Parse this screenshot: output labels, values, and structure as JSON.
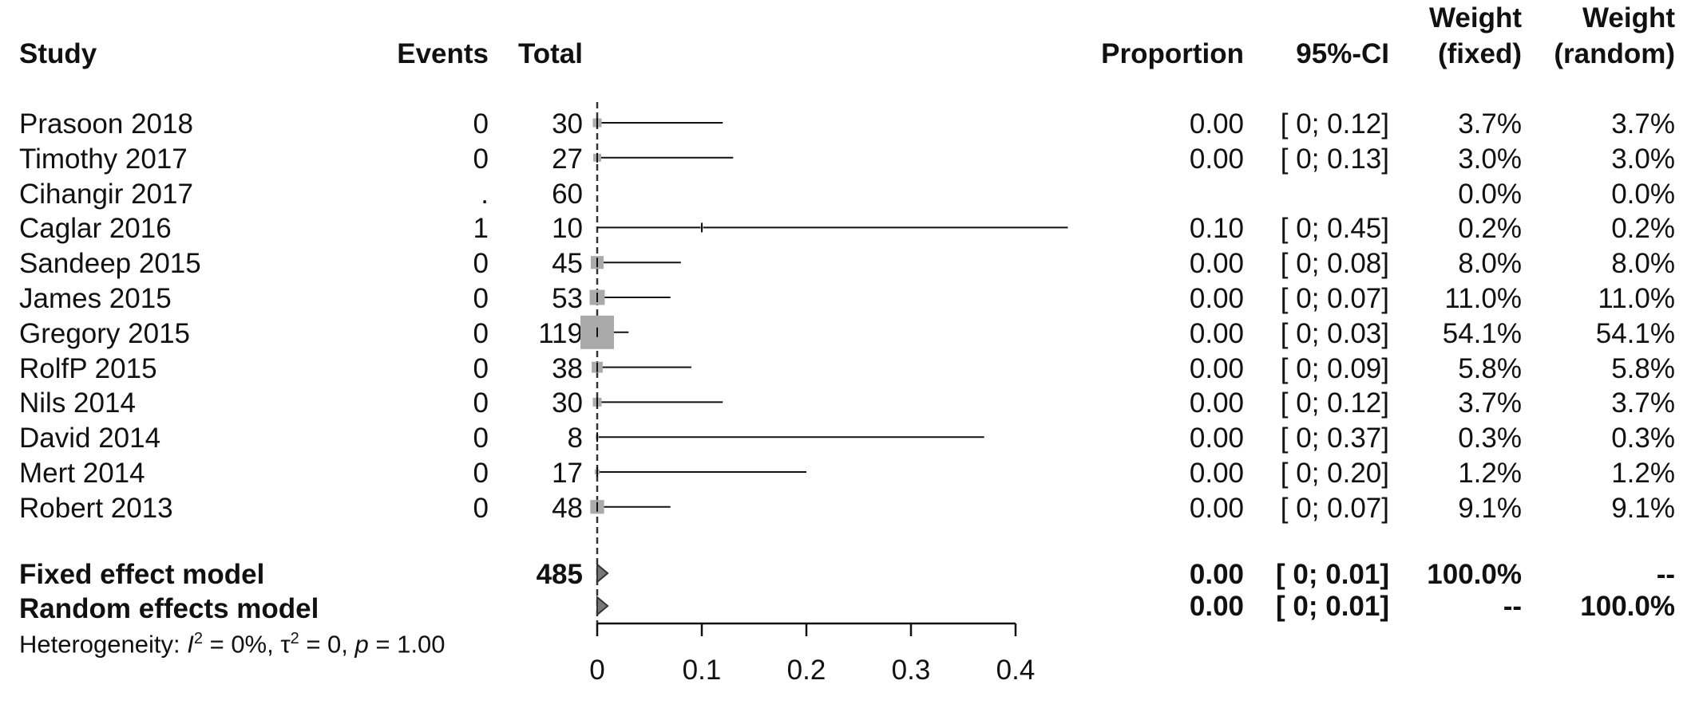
{
  "headers": {
    "study": "Study",
    "events": "Events",
    "total": "Total",
    "proportion": "Proportion",
    "ci": "95%-CI",
    "weight_fixed_1": "Weight",
    "weight_fixed_2": "(fixed)",
    "weight_random_1": "Weight",
    "weight_random_2": "(random)"
  },
  "rows": [
    {
      "study": "Prasoon 2018",
      "events": "0",
      "total": "30",
      "proportion": "0.00",
      "ci": "[ 0; 0.12]",
      "w_fixed": "3.7%",
      "w_random": "3.7%"
    },
    {
      "study": "Timothy 2017",
      "events": "0",
      "total": "27",
      "proportion": "0.00",
      "ci": "[ 0; 0.13]",
      "w_fixed": "3.0%",
      "w_random": "3.0%"
    },
    {
      "study": "Cihangir 2017",
      "events": ".",
      "total": "60",
      "proportion": "",
      "ci": "",
      "w_fixed": "0.0%",
      "w_random": "0.0%"
    },
    {
      "study": "Caglar 2016",
      "events": "1",
      "total": "10",
      "proportion": "0.10",
      "ci": "[ 0; 0.45]",
      "w_fixed": "0.2%",
      "w_random": "0.2%"
    },
    {
      "study": "Sandeep 2015",
      "events": "0",
      "total": "45",
      "proportion": "0.00",
      "ci": "[ 0; 0.08]",
      "w_fixed": "8.0%",
      "w_random": "8.0%"
    },
    {
      "study": "James 2015",
      "events": "0",
      "total": "53",
      "proportion": "0.00",
      "ci": "[ 0; 0.07]",
      "w_fixed": "11.0%",
      "w_random": "11.0%"
    },
    {
      "study": "Gregory 2015",
      "events": "0",
      "total": "119",
      "proportion": "0.00",
      "ci": "[ 0; 0.03]",
      "w_fixed": "54.1%",
      "w_random": "54.1%"
    },
    {
      "study": "RolfP 2015",
      "events": "0",
      "total": "38",
      "proportion": "0.00",
      "ci": "[ 0; 0.09]",
      "w_fixed": "5.8%",
      "w_random": "5.8%"
    },
    {
      "study": "Nils 2014",
      "events": "0",
      "total": "30",
      "proportion": "0.00",
      "ci": "[ 0; 0.12]",
      "w_fixed": "3.7%",
      "w_random": "3.7%"
    },
    {
      "study": "David 2014",
      "events": "0",
      "total": "8",
      "proportion": "0.00",
      "ci": "[ 0; 0.37]",
      "w_fixed": "0.3%",
      "w_random": "0.3%"
    },
    {
      "study": "Mert 2014",
      "events": "0",
      "total": "17",
      "proportion": "0.00",
      "ci": "[ 0; 0.20]",
      "w_fixed": "1.2%",
      "w_random": "1.2%"
    },
    {
      "study": "Robert 2013",
      "events": "0",
      "total": "48",
      "proportion": "0.00",
      "ci": "[ 0; 0.07]",
      "w_fixed": "9.1%",
      "w_random": "9.1%"
    }
  ],
  "models": {
    "fixed": {
      "label": "Fixed effect model",
      "total": "485",
      "proportion": "0.00",
      "ci": "[ 0; 0.01]",
      "w_fixed": "100.0%",
      "w_random": "--"
    },
    "random": {
      "label": "Random effects model",
      "total": "",
      "proportion": "0.00",
      "ci": "[ 0; 0.01]",
      "w_fixed": "--",
      "w_random": "100.0%"
    }
  },
  "heterogeneity": {
    "prefix": "Heterogeneity: ",
    "i_symbol": "I",
    "i_sup": "2",
    "i_value": " = 0%, ",
    "tau_symbol": "τ",
    "tau_sup": "2",
    "tau_value": " = 0, ",
    "p_symbol": "p",
    "p_value": " = 1.00"
  },
  "chart_data": {
    "type": "forest",
    "xlim": [
      0,
      0.4
    ],
    "x_ticks": [
      "0",
      "0.1",
      "0.2",
      "0.3",
      "0.4"
    ],
    "x_tick_values": [
      0,
      0.1,
      0.2,
      0.3,
      0.4
    ],
    "reference_line": 0,
    "studies": [
      {
        "name": "Prasoon 2018",
        "estimate": 0.0,
        "lower": 0,
        "upper": 0.12,
        "weight": 3.7
      },
      {
        "name": "Timothy 2017",
        "estimate": 0.0,
        "lower": 0,
        "upper": 0.13,
        "weight": 3.0
      },
      {
        "name": "Cihangir 2017",
        "estimate": null,
        "lower": null,
        "upper": null,
        "weight": 0.0
      },
      {
        "name": "Caglar 2016",
        "estimate": 0.1,
        "lower": 0,
        "upper": 0.45,
        "weight": 0.2
      },
      {
        "name": "Sandeep 2015",
        "estimate": 0.0,
        "lower": 0,
        "upper": 0.08,
        "weight": 8.0
      },
      {
        "name": "James 2015",
        "estimate": 0.0,
        "lower": 0,
        "upper": 0.07,
        "weight": 11.0
      },
      {
        "name": "Gregory 2015",
        "estimate": 0.0,
        "lower": 0,
        "upper": 0.03,
        "weight": 54.1
      },
      {
        "name": "RolfP 2015",
        "estimate": 0.0,
        "lower": 0,
        "upper": 0.09,
        "weight": 5.8
      },
      {
        "name": "Nils 2014",
        "estimate": 0.0,
        "lower": 0,
        "upper": 0.12,
        "weight": 3.7
      },
      {
        "name": "David 2014",
        "estimate": 0.0,
        "lower": 0,
        "upper": 0.37,
        "weight": 0.3
      },
      {
        "name": "Mert 2014",
        "estimate": 0.0,
        "lower": 0,
        "upper": 0.2,
        "weight": 1.2
      },
      {
        "name": "Robert 2013",
        "estimate": 0.0,
        "lower": 0,
        "upper": 0.07,
        "weight": 9.1
      }
    ],
    "summary": [
      {
        "name": "Fixed effect model",
        "estimate": 0.0,
        "lower": 0,
        "upper": 0.01
      },
      {
        "name": "Random effects model",
        "estimate": 0.0,
        "lower": 0,
        "upper": 0.01
      }
    ],
    "colors": {
      "square": "#aaaaaa",
      "line": "#111111",
      "diamond": "#777777"
    }
  }
}
